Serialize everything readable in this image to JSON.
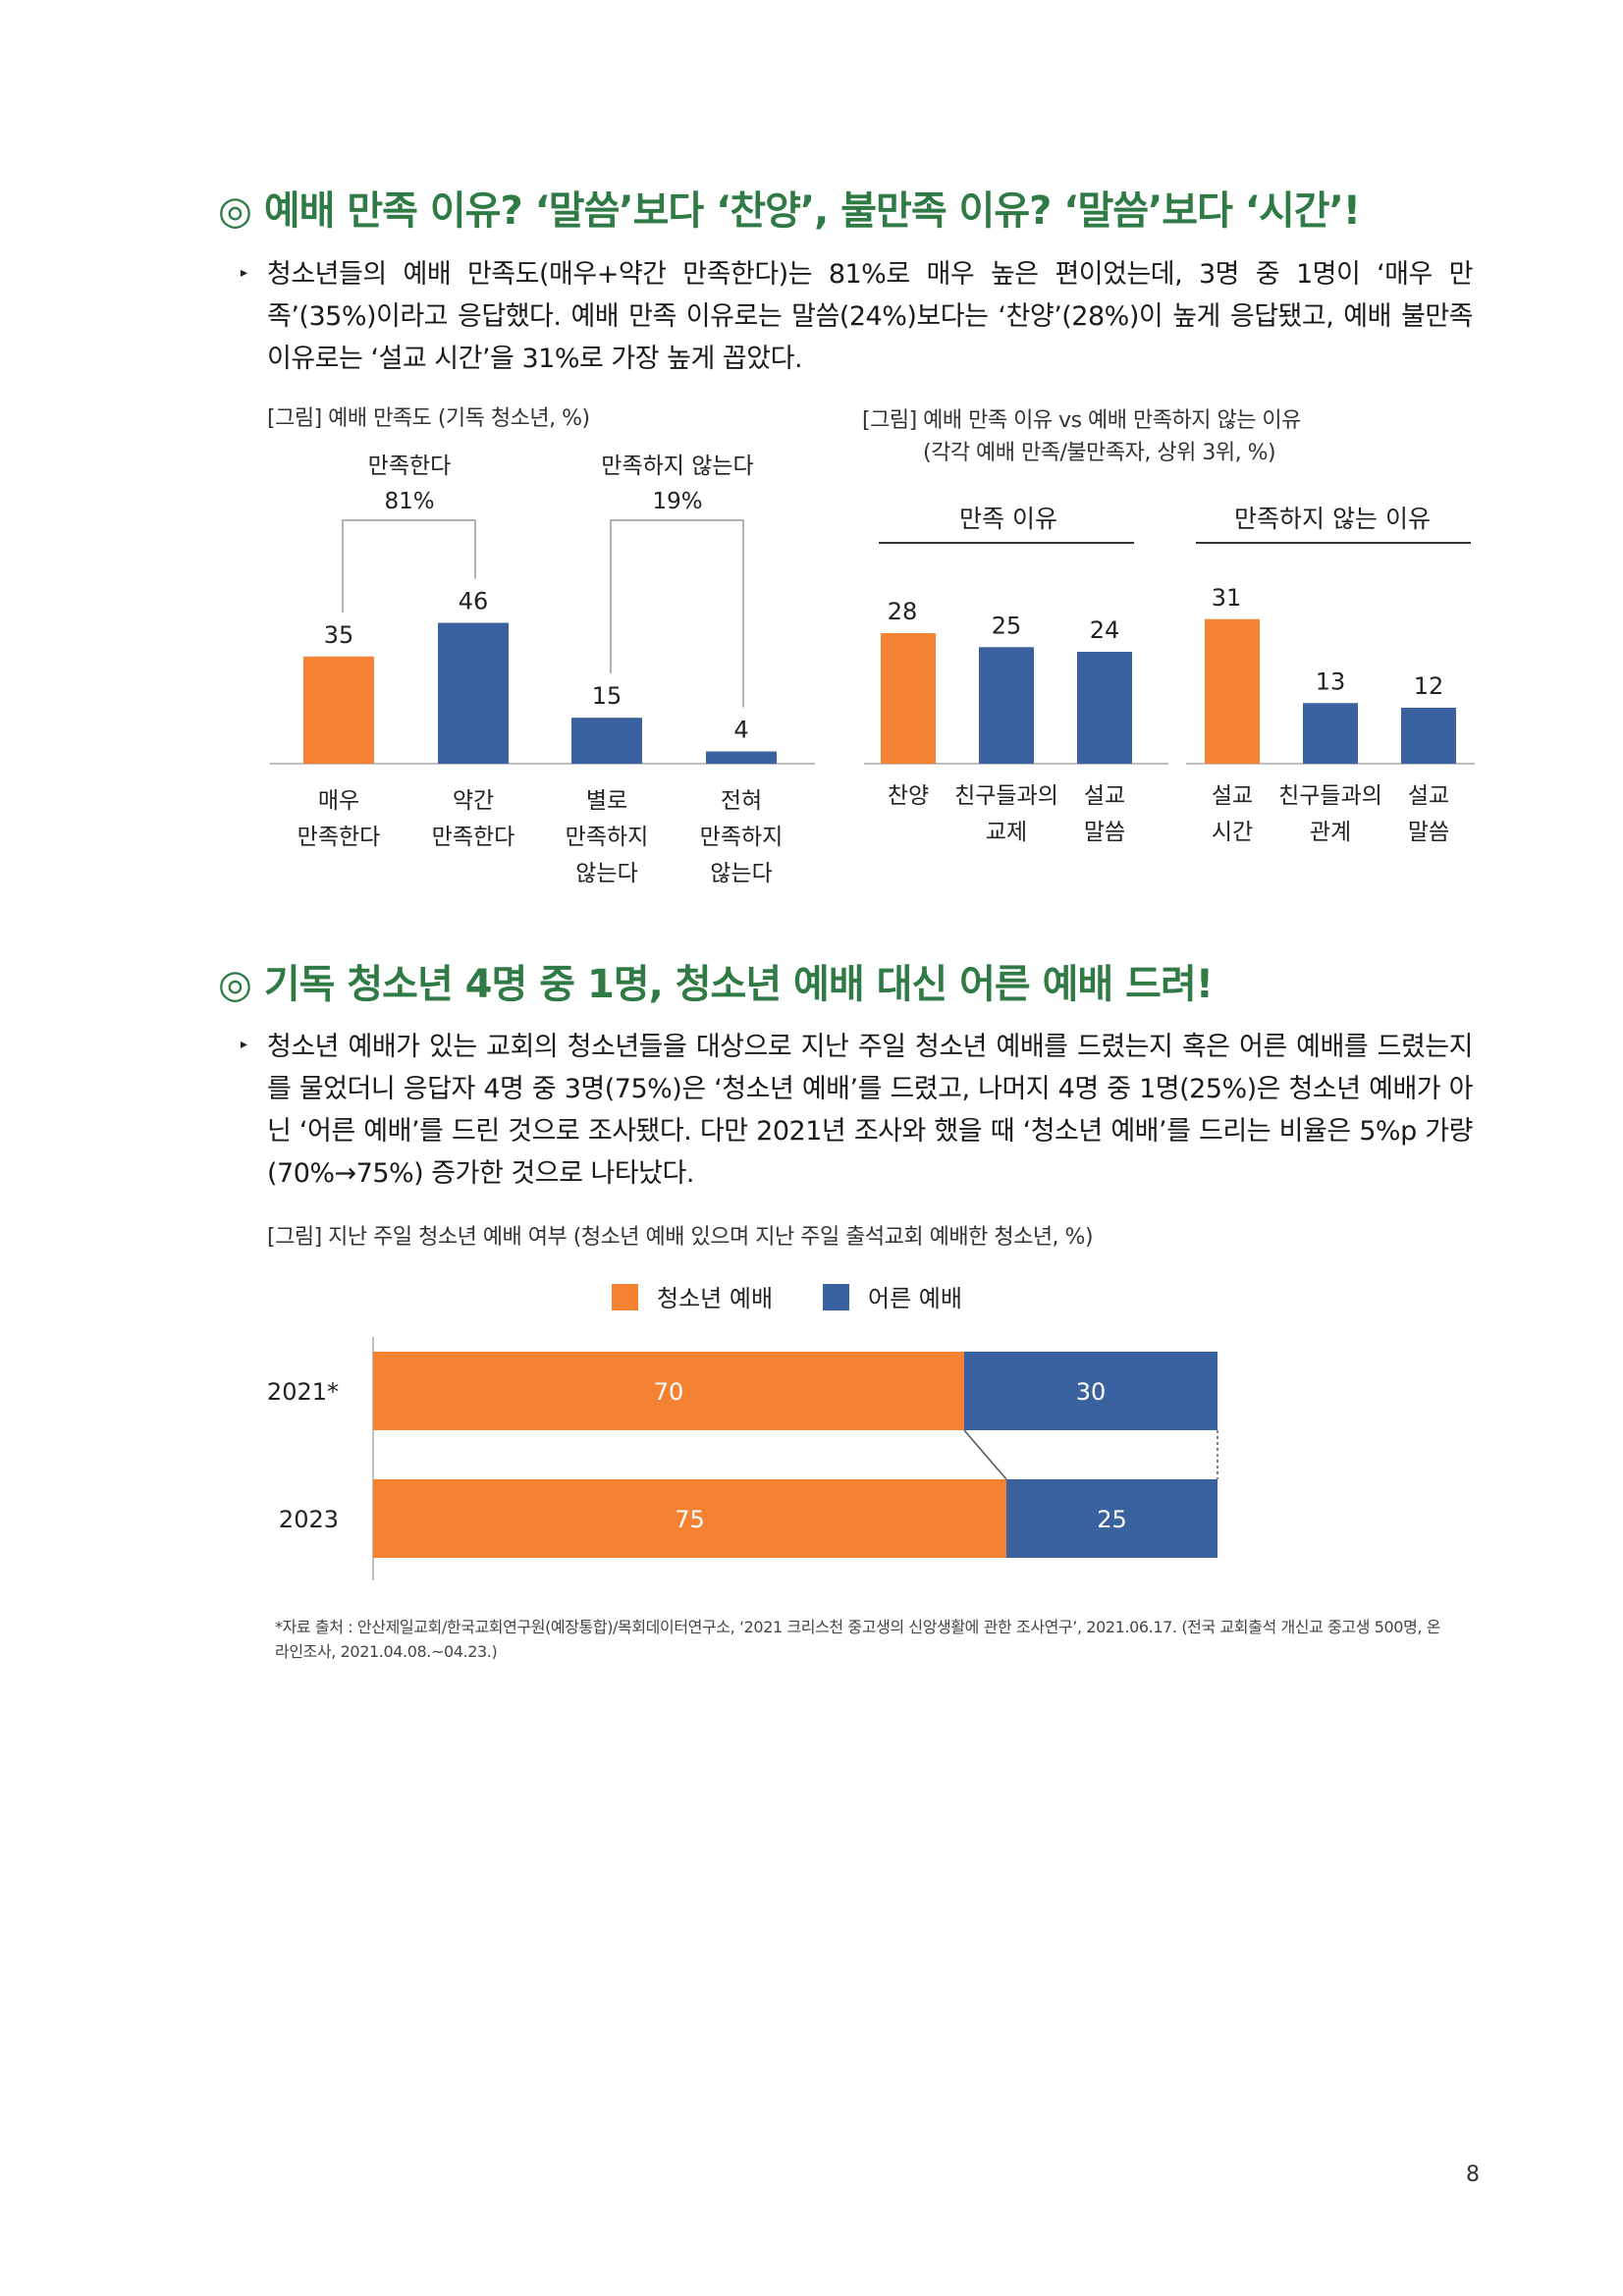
{
  "section1": {
    "heading": "◎ 예배 만족 이유? ‘말씀’보다 ‘찬양’, 불만족 이유? ‘말씀’보다 ‘시간’!",
    "paragraph": "청소년들의 예배 만족도(매우+약간 만족한다)는 81%로 매우 높은 편이었는데, 3명 중 1명이 ‘매우 만족’(35%)이라고 응답했다. 예배 만족 이유로는 말씀(24%)보다는 ‘찬양’(28%)이 높게 응답됐고, 예배 불만족 이유로는 ‘설교 시간’을 31%로 가장 높게 꼽았다."
  },
  "section2": {
    "heading": "◎ 기독 청소년 4명 중 1명, 청소년 예배 대신 어른 예배 드려!",
    "paragraph": "청소년 예배가 있는 교회의 청소년들을 대상으로 지난 주일 청소년 예배를 드렸는지 혹은 어른 예배를 드렸는지를 물었더니 응답자 4명 중 3명(75%)은 ‘청소년 예배’를 드렸고, 나머지 4명 중 1명(25%)은 청소년 예배가 아닌 ‘어른 예배’를 드린 것으로 조사됐다. 다만 2021년 조사와 했을 때 ‘청소년 예배’를 드리는 비율은 5%p 가량(70%→75%) 증가한 것으로 나타났다."
  },
  "source": "*자료 출처 : 안산제일교회/한국교회연구원(예장통합)/목회데이터연구소, ‘2021 크리스천 중고생의 신앙생활에 관한 조사연구’, 2021.06.17. (전국 교회출석 개신교 중고생 500명, 온라인조사, 2021.04.08.~04.23.)",
  "page_number": "8",
  "colors": {
    "orange": "#f58232",
    "blue": "#3a62a0",
    "green": "#2f7a45"
  },
  "chart_data": [
    {
      "type": "bar",
      "title": "[그림] 예배 만족도 (기독 청소년, %)",
      "categories": [
        [
          "매우",
          "만족한다"
        ],
        [
          "약간",
          "만족한다"
        ],
        [
          "별로",
          "만족하지",
          "않는다"
        ],
        [
          "전혀",
          "만족하지",
          "않는다"
        ]
      ],
      "values": [
        35,
        46,
        15,
        4
      ],
      "colors": [
        "orange",
        "blue",
        "blue",
        "blue"
      ],
      "groups": [
        {
          "label": "만족한다",
          "total": "81%"
        },
        {
          "label": "만족하지 않는다",
          "total": "19%"
        }
      ]
    },
    {
      "type": "bar",
      "title": "[그림] 예배 만족 이유 vs 예배 만족하지 않는 이유",
      "subtitle": "(각각 예배 만족/불만족자, 상위 3위, %)",
      "panels": [
        {
          "header": "만족 이유",
          "categories": [
            [
              "찬양"
            ],
            [
              "친구들과의",
              "교제"
            ],
            [
              "설교",
              "말씀"
            ]
          ],
          "values": [
            28,
            25,
            24
          ],
          "colors": [
            "orange",
            "blue",
            "blue"
          ]
        },
        {
          "header": "만족하지 않는 이유",
          "categories": [
            [
              "설교",
              "시간"
            ],
            [
              "친구들과의",
              "관계"
            ],
            [
              "설교",
              "말씀"
            ]
          ],
          "values": [
            31,
            13,
            12
          ],
          "colors": [
            "orange",
            "blue",
            "blue"
          ]
        }
      ]
    },
    {
      "type": "bar",
      "orientation": "horizontal-stacked",
      "title": "[그림] 지난 주일 청소년 예배 여부 (청소년 예배 있으며 지난 주일 출석교회 예배한 청소년, %)",
      "categories": [
        "2021*",
        "2023"
      ],
      "series": [
        {
          "name": "청소년 예배",
          "values": [
            70,
            75
          ],
          "color": "orange"
        },
        {
          "name": "어른 예배",
          "values": [
            30,
            25
          ],
          "color": "blue"
        }
      ]
    }
  ]
}
